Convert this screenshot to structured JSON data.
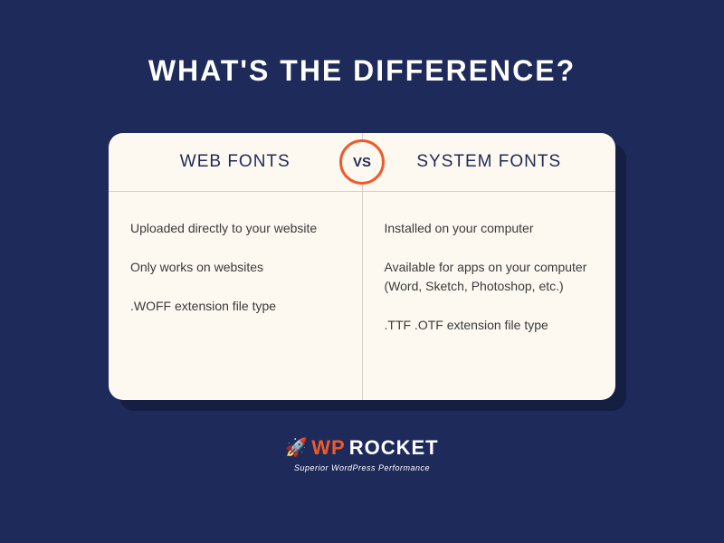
{
  "title": "WHAT'S THE DIFFERENCE?",
  "colors": {
    "background": "#1e2a5a",
    "title_text": "#ffffff",
    "card_bg": "#fdf9f0",
    "card_shadow": "#151f44",
    "divider": "#d6d0c4",
    "header_text": "#1e2a5a",
    "body_text": "#3a3a3a",
    "vs_border": "#f05a28",
    "vs_bg": "#fdf9f0",
    "vs_text": "#1e2a5a",
    "logo_wp": "#f05a28",
    "logo_rocket": "#ffffff",
    "tagline": "#ffffff",
    "rocket_icon": "#f05a28"
  },
  "comparison": {
    "vs_label": "VS",
    "left": {
      "header": "WEB FONTS",
      "items": [
        "Uploaded directly to your website",
        "Only works on websites",
        ".WOFF extension file type"
      ]
    },
    "right": {
      "header": "SYSTEM FONTS",
      "items": [
        "Installed on your computer",
        "Available for apps on your computer (Word, Sketch, Photoshop, etc.)",
        ".TTF .OTF extension file type"
      ]
    }
  },
  "logo": {
    "wp": "WP",
    "rocket": "ROCKET",
    "tagline": "Superior WordPress Performance",
    "rocket_glyph": "🚀"
  }
}
